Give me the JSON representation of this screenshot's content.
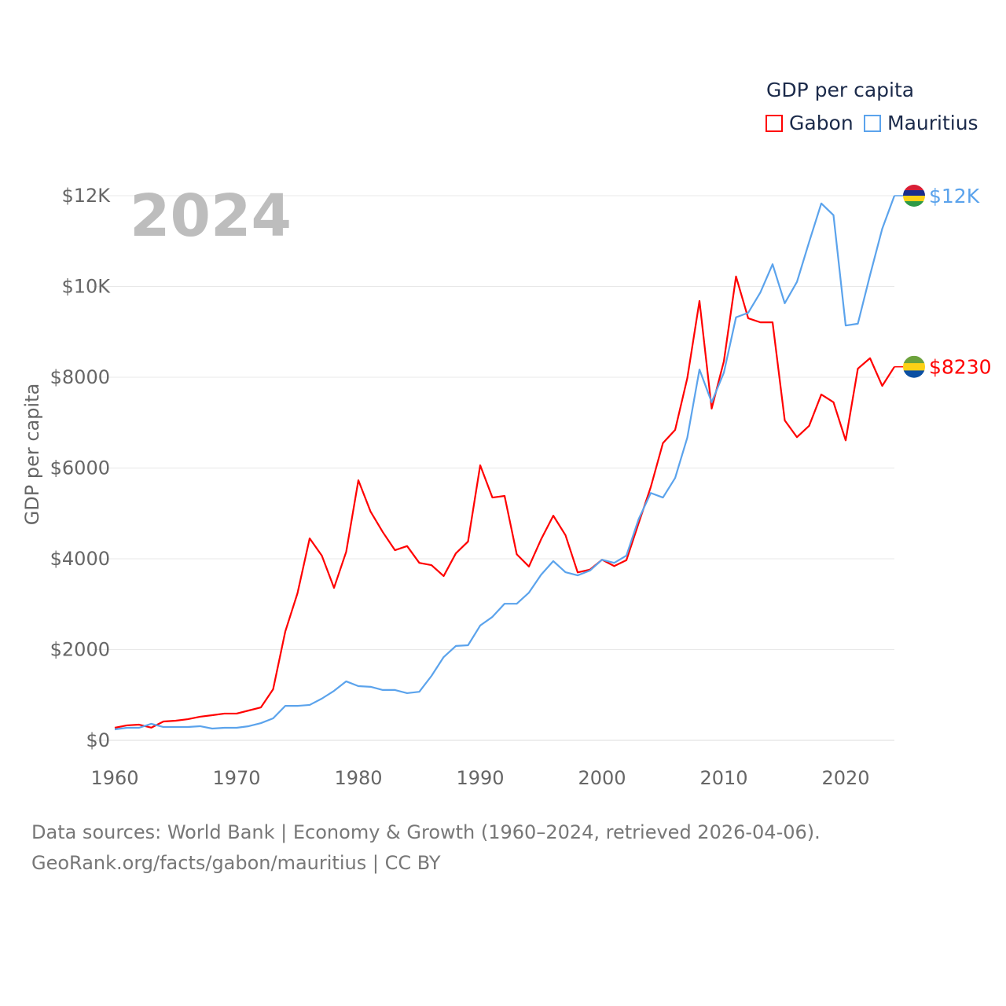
{
  "chart_data": {
    "type": "line",
    "title": "GDP per capita",
    "ylabel": "GDP per capita",
    "xlabel": "",
    "year_label": "2024",
    "xlim": [
      1960,
      2024
    ],
    "ylim": [
      0,
      12000
    ],
    "grid": true,
    "legend_placement": "top-right",
    "x_ticks": [
      1960,
      1970,
      1980,
      1990,
      2000,
      2010,
      2020
    ],
    "x_tick_labels": [
      "1960",
      "1970",
      "1980",
      "1990",
      "2000",
      "2010",
      "2020"
    ],
    "y_ticks": [
      0,
      2000,
      4000,
      6000,
      8000,
      10000,
      12000
    ],
    "y_tick_labels": [
      "$0",
      "$2000",
      "$4000",
      "$6000",
      "$8000",
      "$10K",
      "$12K"
    ],
    "x": [
      1960,
      1961,
      1962,
      1963,
      1964,
      1965,
      1966,
      1967,
      1968,
      1969,
      1970,
      1971,
      1972,
      1973,
      1974,
      1975,
      1976,
      1977,
      1978,
      1979,
      1980,
      1981,
      1982,
      1983,
      1984,
      1985,
      1986,
      1987,
      1988,
      1989,
      1990,
      1991,
      1992,
      1993,
      1994,
      1995,
      1996,
      1997,
      1998,
      1999,
      2000,
      2001,
      2002,
      2003,
      2004,
      2005,
      2006,
      2007,
      2008,
      2009,
      2010,
      2011,
      2012,
      2013,
      2014,
      2015,
      2016,
      2017,
      2018,
      2019,
      2020,
      2021,
      2022,
      2023,
      2024
    ],
    "series": [
      {
        "name": "Gabon",
        "color": "#ff0000",
        "end_label": "$8230",
        "flag": [
          "#6ca23c",
          "#fcd116",
          "#0b4fa3"
        ],
        "values": [
          277,
          330,
          346,
          280,
          415,
          433,
          467,
          520,
          554,
          590,
          590,
          658,
          727,
          1125,
          2400,
          3240,
          4450,
          4070,
          3360,
          4155,
          5730,
          5040,
          4590,
          4190,
          4280,
          3910,
          3860,
          3620,
          4120,
          4380,
          6060,
          5350,
          5385,
          4100,
          3830,
          4430,
          4950,
          4520,
          3700,
          3760,
          3980,
          3840,
          3970,
          4780,
          5580,
          6550,
          6840,
          7980,
          9680,
          7310,
          8350,
          10220,
          9300,
          9210,
          9210,
          7050,
          6680,
          6930,
          7620,
          7450,
          6610,
          8190,
          8420,
          7810,
          8230
        ]
      },
      {
        "name": "Mauritius",
        "color": "#5ba3ec",
        "end_label": "$12K",
        "flag": [
          "#d81e36",
          "#1a2e8c",
          "#fcd116",
          "#2e9a47"
        ],
        "values": [
          242,
          277,
          277,
          364,
          294,
          294,
          294,
          312,
          260,
          277,
          277,
          312,
          380,
          485,
          760,
          760,
          780,
          920,
          1090,
          1300,
          1195,
          1180,
          1110,
          1110,
          1040,
          1070,
          1420,
          1835,
          2080,
          2095,
          2530,
          2720,
          3010,
          3010,
          3255,
          3650,
          3950,
          3705,
          3635,
          3740,
          3980,
          3910,
          4070,
          4870,
          5450,
          5350,
          5780,
          6670,
          8170,
          7450,
          8100,
          9320,
          9420,
          9870,
          10490,
          9630,
          10100,
          10980,
          11830,
          11570,
          9140,
          9180,
          10250,
          11270,
          12000
        ]
      }
    ]
  },
  "footer": {
    "line1": "Data sources: World Bank | Economy & Growth (1960–2024, retrieved 2026-04-06).",
    "line2": "GeoRank.org/facts/gabon/mauritius | CC BY"
  }
}
